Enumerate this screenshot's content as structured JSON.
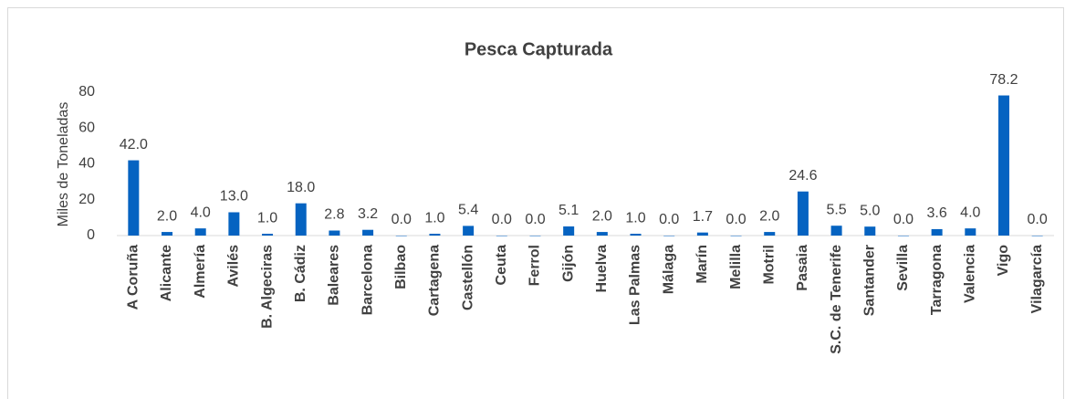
{
  "chart_data": {
    "type": "bar",
    "title": "Pesca Capturada",
    "y_label": "Miles de Toneladas",
    "categories": [
      "A Coruña",
      "Alicante",
      "Almería",
      "Avilés",
      "B. Algeciras",
      "B. Cádiz",
      "Baleares",
      "Barcelona",
      "Bilbao",
      "Cartagena",
      "Castellón",
      "Ceuta",
      "Ferrol",
      "Gijón",
      "Huelva",
      "Las Palmas",
      "Málaga",
      "Marín",
      "Melilla",
      "Motril",
      "Pasaia",
      "S.C. de Tenerife",
      "Santander",
      "Sevilla",
      "Tarragona",
      "Valencia",
      "Vigo",
      "Vilagarcía"
    ],
    "values": [
      42,
      2,
      4,
      13,
      1,
      18,
      2.8,
      3.2,
      0,
      1,
      5.4,
      0,
      0,
      5.1,
      2,
      1,
      0,
      1.7,
      0,
      2,
      24.6,
      5.5,
      5,
      0,
      3.6,
      4,
      78.2,
      0
    ],
    "value_labels": [
      "42.0",
      "2.0",
      "4.0",
      "13.0",
      "1.0",
      "18.0",
      "2.8",
      "3.2",
      "0.0",
      "1.0",
      "5.4",
      "0.0",
      "0.0",
      "5.1",
      "2.0",
      "1.0",
      "0.0",
      "1.7",
      "0.0",
      "2.0",
      "24.6",
      "5.5",
      "5.0",
      "0.0",
      "3.6",
      "4.0",
      "78.2",
      "0.0"
    ],
    "color": "#0563c1",
    "ylim": [
      0,
      80
    ],
    "yticks": [
      0,
      20,
      40,
      60,
      80
    ],
    "grid": false
  }
}
